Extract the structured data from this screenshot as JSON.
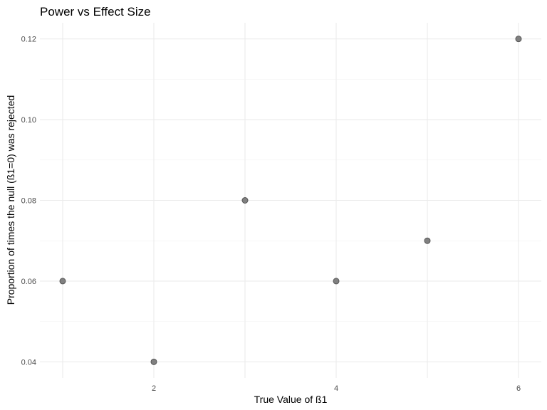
{
  "chart_data": {
    "type": "scatter",
    "title": "Power vs Effect Size",
    "xlabel": "True Value of ß1",
    "ylabel": "Proportion of times the null (ß1=0) was rejected",
    "x": [
      1,
      2,
      3,
      4,
      5,
      6
    ],
    "y": [
      0.06,
      0.04,
      0.08,
      0.06,
      0.07,
      0.12
    ],
    "xlim": [
      0.75,
      6.25
    ],
    "ylim": [
      0.036,
      0.124
    ],
    "x_ticks": [
      2,
      4,
      6
    ],
    "x_tick_labels": [
      "2",
      "4",
      "6"
    ],
    "y_ticks": [
      0.04,
      0.06,
      0.08,
      0.1,
      0.12
    ],
    "y_tick_labels": [
      "0.04",
      "0.06",
      "0.08",
      "0.10",
      "0.12"
    ],
    "x_minor_ticks": [
      1,
      3,
      5
    ],
    "y_minor_ticks": [
      0.05,
      0.07,
      0.09,
      0.11
    ],
    "grid": true,
    "point_color": "#808080",
    "point_stroke": "#555555",
    "grid_color": "#ebebeb"
  }
}
